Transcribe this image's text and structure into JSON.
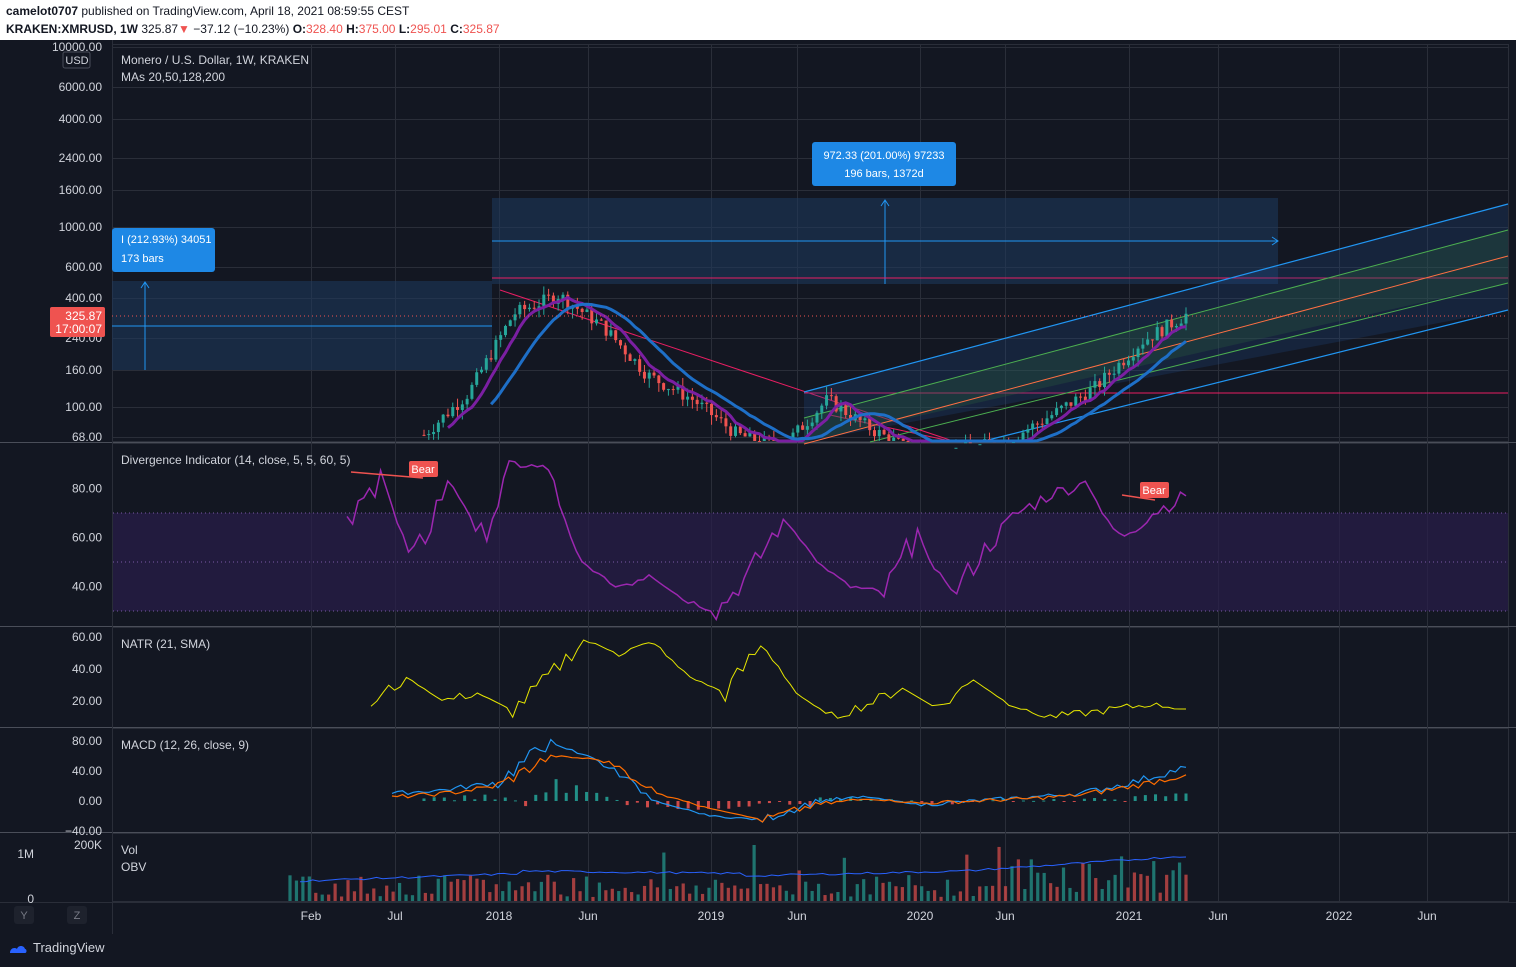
{
  "header": {
    "author": "camelot0707",
    "published_text": " published on TradingView.com, April 18, 2021 08:59:55 CEST",
    "symbol": "KRAKEN:XMRUSD, 1W",
    "last": "325.87",
    "arrow": "▼",
    "change": "−37.12 (−10.23%)",
    "o_label": "O:",
    "o_val": "328.40",
    "h_label": "H:",
    "h_val": "375.00",
    "l_label": "L:",
    "l_val": "295.01",
    "c_label": "C:",
    "c_val": "325.87"
  },
  "main_pane": {
    "title": "Monero / U.S. Dollar, 1W, KRAKEN",
    "ma_label": "MAs 20,50,128,200",
    "currency": "USD",
    "price_badge": "325.87",
    "countdown": "17:00:07",
    "measure_right": {
      "line1": "972.33 (201.00%) 97233",
      "line2": "196 bars, 1372d"
    },
    "measure_left": {
      "line1": "I (212.93%) 34051",
      "line2": "173 bars"
    },
    "colors": {
      "up": "#26a69a",
      "down": "#ef5350",
      "ma_purple": "#7b1fa2",
      "ma_blue": "#1e6fc7",
      "trend": "#e91e63"
    }
  },
  "divergence_pane": {
    "title": "Divergence Indicator (14, close, 5, 5, 60, 5)",
    "bear_label_1": "Bear",
    "bear_label_2": "Bear"
  },
  "natr_pane": {
    "title": "NATR (21, SMA)"
  },
  "macd_pane": {
    "title": "MACD (12, 26, close, 9)"
  },
  "volume_pane": {
    "vol_label": "Vol",
    "obv_label": "OBV",
    "axis_top": "1M",
    "axis_zero": "0",
    "obv_axis": "200K"
  },
  "time_axis": {
    "labels": [
      "Feb",
      "Jul",
      "2018",
      "Jun",
      "2019",
      "Jun",
      "2020",
      "Jun",
      "2021",
      "Jun",
      "2022",
      "Jun"
    ]
  },
  "corner_buttons": {
    "y": "Y",
    "z": "Z"
  },
  "footer": {
    "brand": "TradingView"
  },
  "chart_data": [
    {
      "type": "line",
      "title": "Monero / U.S. Dollar, 1W, KRAKEN",
      "scale": "log",
      "y_ticks": [
        "10000.00",
        "6000.00",
        "4000.00",
        "2400.00",
        "1600.00",
        "1000.00",
        "600.00",
        "400.00",
        "240.00",
        "160.00",
        "100.00",
        "68.00"
      ],
      "x": [
        "2017-06",
        "2017-09",
        "2017-12",
        "2018-01",
        "2018-03",
        "2018-06",
        "2018-09",
        "2018-12",
        "2019-03",
        "2019-06",
        "2019-09",
        "2019-12",
        "2020-03",
        "2020-06",
        "2020-09",
        "2020-12",
        "2021-02",
        "2021-04"
      ],
      "series": [
        {
          "values": [
            70,
            120,
            330,
            420,
            280,
            150,
            110,
            70,
            60,
            110,
            75,
            55,
            58,
            65,
            90,
            130,
            230,
            325.87
          ]
        }
      ]
    },
    {
      "type": "line",
      "title": "Divergence Indicator (14, close, 5, 5, 60, 5)",
      "y_ticks": [
        "80.00",
        "60.00",
        "40.00"
      ],
      "bands": [
        30,
        50,
        70
      ],
      "series": [
        {
          "values": [
            64,
            85,
            50,
            84,
            60,
            90,
            88,
            50,
            40,
            45,
            35,
            30,
            45,
            68,
            50,
            40,
            37,
            62,
            36,
            55,
            70,
            78,
            82,
            60,
            70,
            77
          ]
        }
      ]
    },
    {
      "type": "line",
      "title": "NATR (21, SMA)",
      "y_ticks": [
        "60.00",
        "40.00",
        "20.00"
      ],
      "series": [
        {
          "values": [
            18,
            35,
            20,
            25,
            14,
            35,
            58,
            50,
            56,
            35,
            25,
            55,
            25,
            10,
            18,
            28,
            15,
            33,
            18,
            10,
            12,
            15,
            18,
            15
          ]
        }
      ]
    },
    {
      "type": "line",
      "title": "MACD (12, 26, close, 9)",
      "y_ticks": [
        "80.00",
        "40.00",
        "0.00",
        "−40.00"
      ],
      "series": [
        {
          "values": [
            10,
            15,
            25,
            80,
            50,
            0,
            -20,
            -25,
            0,
            5,
            -5,
            0,
            5,
            10,
            25,
            45
          ]
        },
        {
          "values": [
            5,
            10,
            20,
            60,
            55,
            10,
            -10,
            -25,
            -5,
            3,
            -3,
            0,
            3,
            8,
            20,
            35
          ]
        }
      ]
    }
  ]
}
